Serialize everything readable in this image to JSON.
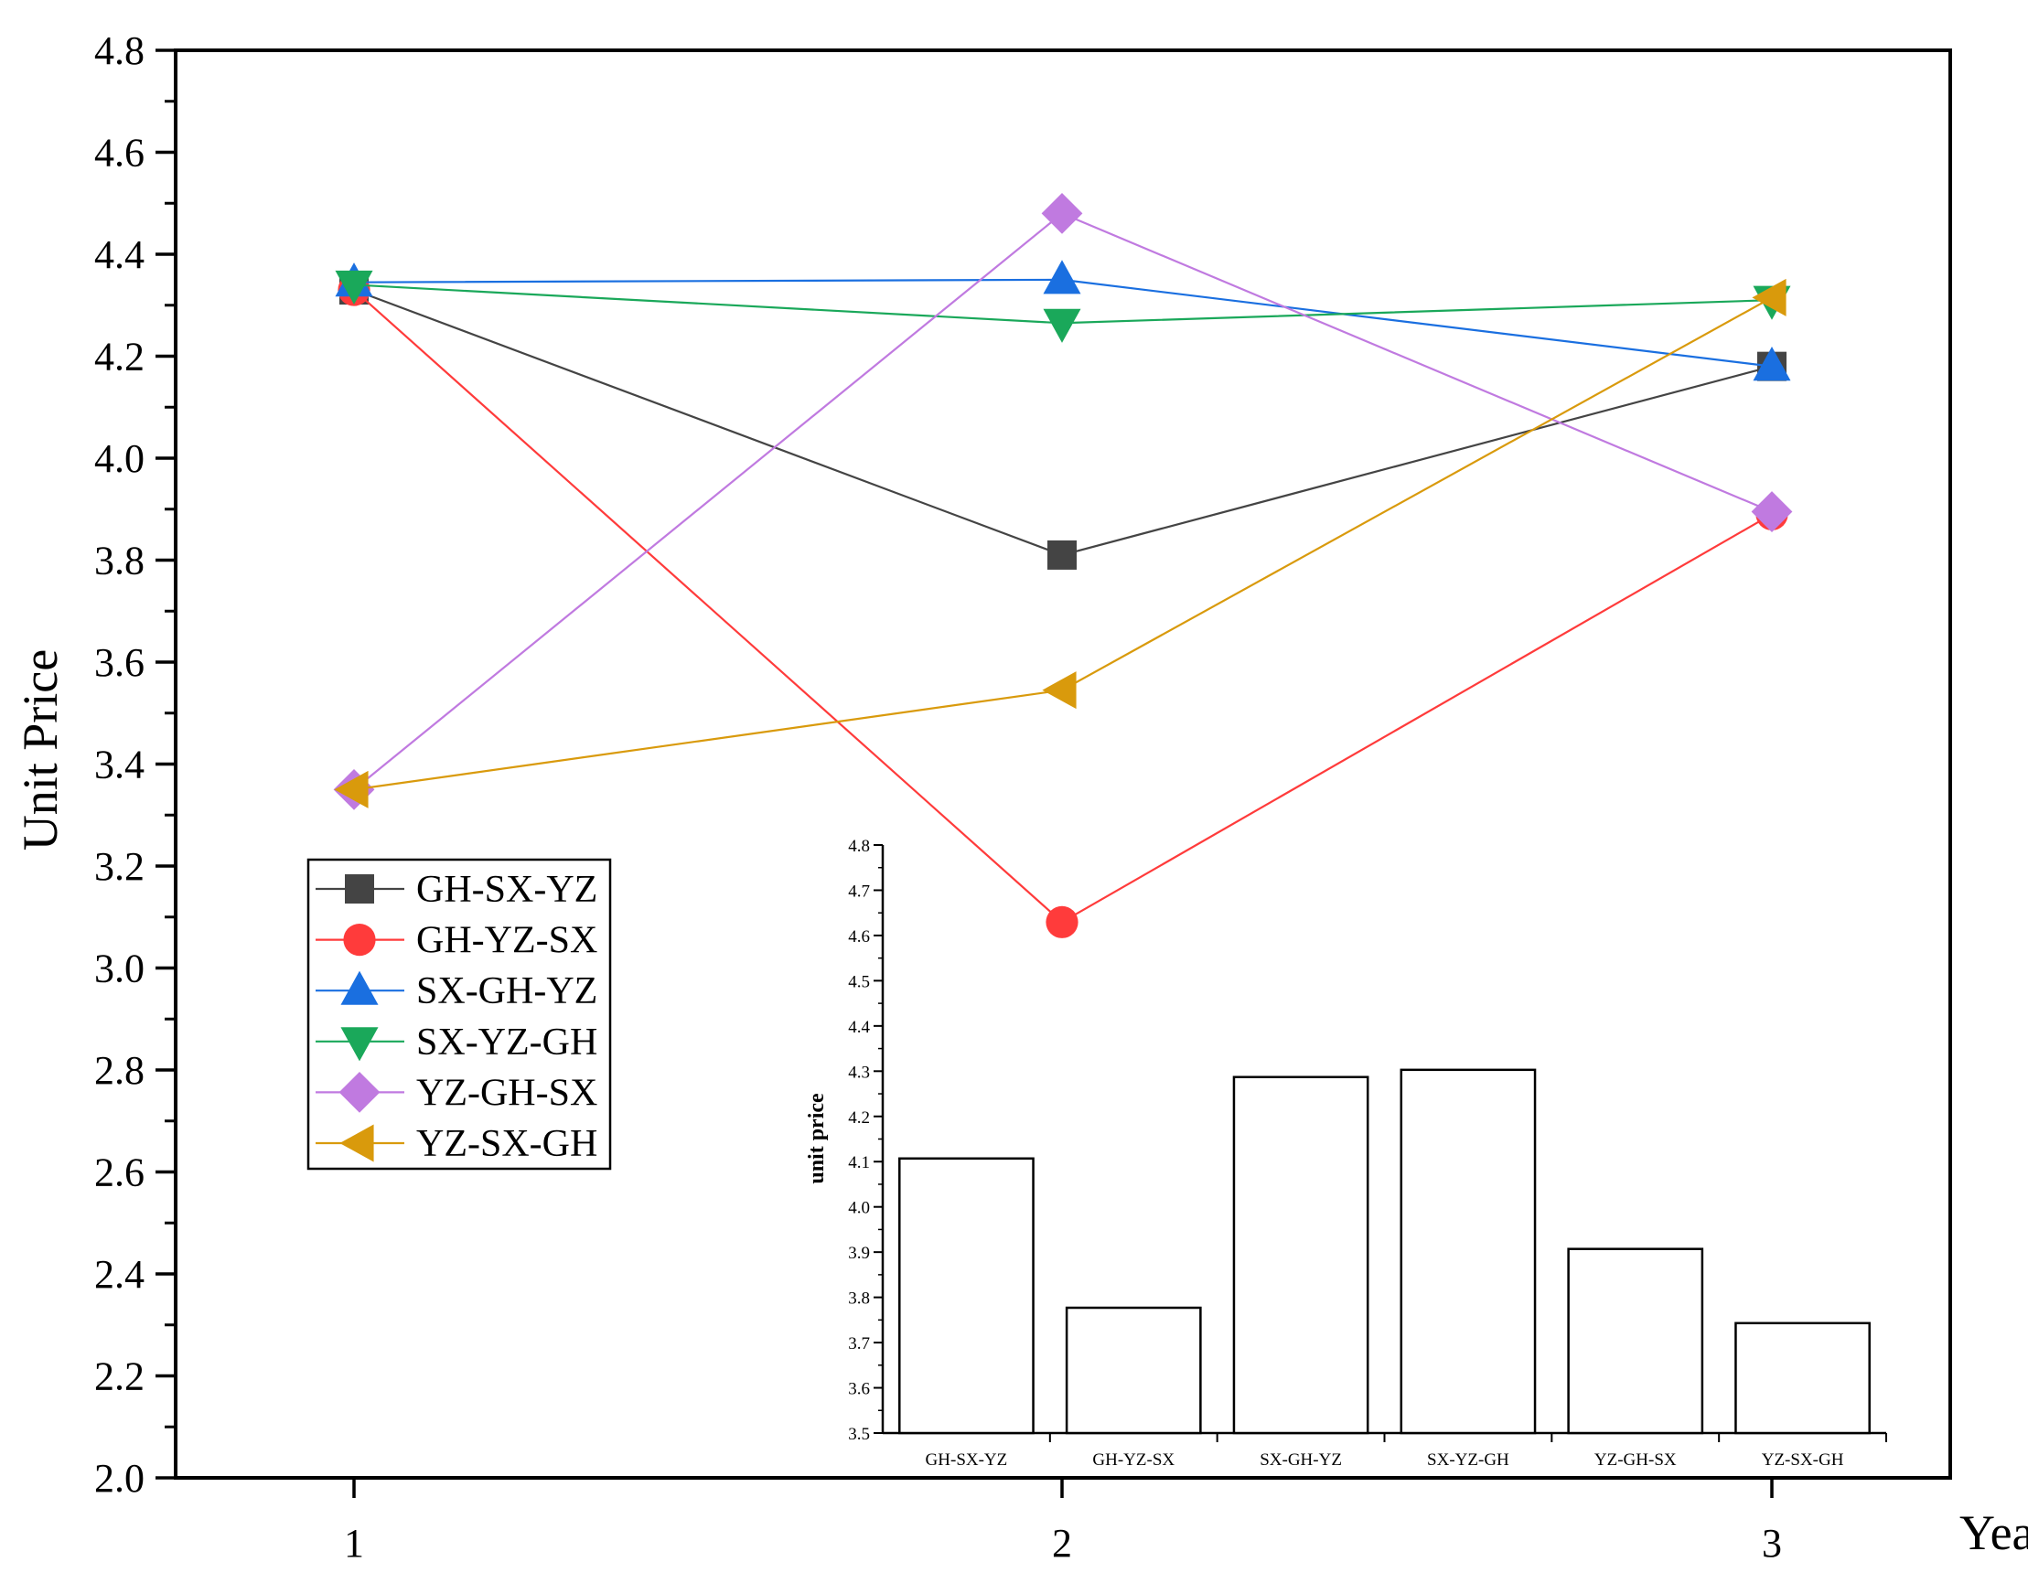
{
  "chart_data": [
    {
      "type": "line",
      "title": "",
      "xlabel": "Year",
      "ylabel": "Unit Price",
      "x": [
        1,
        2,
        3
      ],
      "ylim": [
        2.0,
        4.8
      ],
      "yticks": [
        "2.0",
        "2.2",
        "2.4",
        "2.6",
        "2.8",
        "3.0",
        "3.2",
        "3.4",
        "3.6",
        "3.8",
        "4.0",
        "4.2",
        "4.4",
        "4.6",
        "4.8"
      ],
      "xticks": [
        "1",
        "2",
        "3"
      ],
      "legend_position": "lower-left",
      "series": [
        {
          "name": "GH-SX-YZ",
          "marker": "square",
          "color": "#444444",
          "values": [
            4.33,
            3.81,
            4.18
          ]
        },
        {
          "name": "GH-YZ-SX",
          "marker": "circle",
          "color": "#ff3b3b",
          "values": [
            4.33,
            3.09,
            3.89
          ]
        },
        {
          "name": "SX-GH-YZ",
          "marker": "triangle-up",
          "color": "#1a6fe0",
          "values": [
            4.345,
            4.35,
            4.18
          ]
        },
        {
          "name": "SX-YZ-GH",
          "marker": "triangle-down",
          "color": "#1aa85a",
          "values": [
            4.34,
            4.265,
            4.31
          ]
        },
        {
          "name": "YZ-GH-SX",
          "marker": "diamond",
          "color": "#c07ae0",
          "values": [
            3.35,
            4.48,
            3.895
          ]
        },
        {
          "name": "YZ-SX-GH",
          "marker": "triangle-left",
          "color": "#d99a0c",
          "values": [
            3.35,
            3.545,
            4.315
          ]
        }
      ]
    },
    {
      "type": "bar",
      "title": "",
      "xlabel": "",
      "ylabel": "unit price",
      "ylim": [
        3.5,
        4.8
      ],
      "yticks": [
        "3.5",
        "3.6",
        "3.7",
        "3.8",
        "3.9",
        "4.0",
        "4.1",
        "4.2",
        "4.3",
        "4.4",
        "4.5",
        "4.6",
        "4.7",
        "4.8"
      ],
      "categories": [
        "GH-SX-YZ",
        "GH-YZ-SX",
        "SX-GH-YZ",
        "SX-YZ-GH",
        "YZ-GH-SX",
        "YZ-SX-GH"
      ],
      "values": [
        4.107,
        3.777,
        4.287,
        4.303,
        3.907,
        3.743
      ]
    }
  ]
}
